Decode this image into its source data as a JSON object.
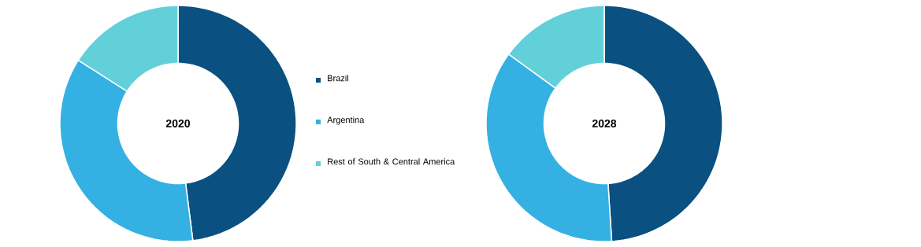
{
  "chart_data": [
    {
      "type": "donut",
      "title": "2020",
      "categories": [
        "Brazil",
        "Argentina",
        "Rest of South & Central America"
      ],
      "values": [
        48,
        36,
        16
      ],
      "colors": [
        "#0a5080",
        "#35b0e2",
        "#62d0d9"
      ],
      "legend": "right"
    },
    {
      "type": "donut",
      "title": "2028",
      "values": [
        49,
        36,
        15
      ],
      "colors": [
        "#0a5080",
        "#35b0e2",
        "#62d0d9"
      ]
    }
  ]
}
